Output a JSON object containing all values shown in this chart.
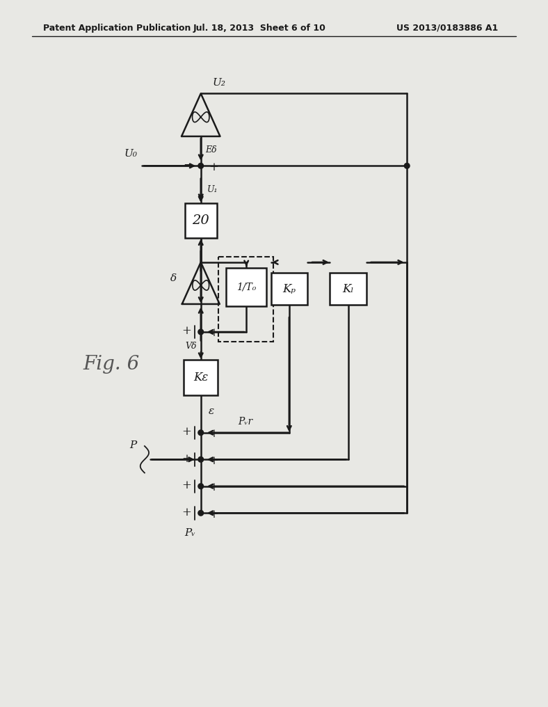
{
  "title_left": "Patent Application Publication",
  "title_mid": "Jul. 18, 2013  Sheet 6 of 10",
  "title_right": "US 2013/0183886 A1",
  "fig_label": "Fig. 6",
  "background_color": "#e8e8e4",
  "line_color": "#1a1a1a",
  "labels": {
    "U2": "U₂",
    "U0": "U₀",
    "U1": "U₁",
    "E_delta": "Eδ",
    "delta": "δ",
    "Ke": "Kε",
    "V_delta": "Vδ",
    "one_over_T0": "1/T₀",
    "Kp": "Kₚ",
    "KL": "Kₗ",
    "epsilon": "ε",
    "Pvr": "Pᵥr",
    "P": "P",
    "Pv": "Pᵥ",
    "block20": "20"
  }
}
